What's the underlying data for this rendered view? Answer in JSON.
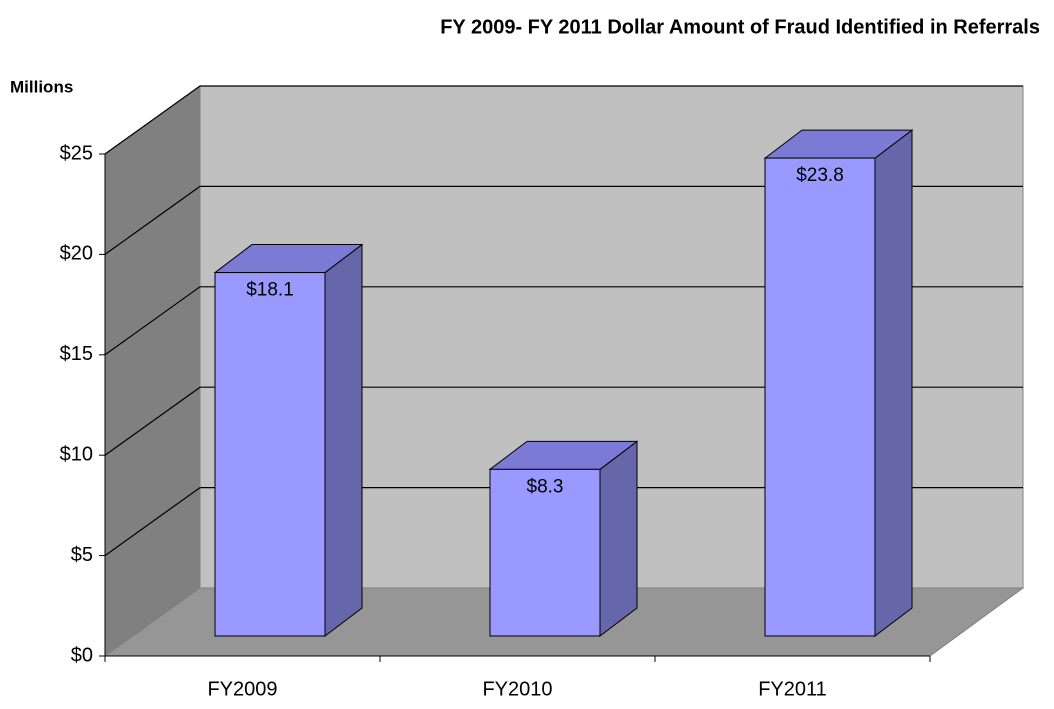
{
  "chart_data": {
    "type": "bar3d",
    "title": "FY 2009- FY 2011 Dollar Amount of Fraud Identified in Referrals",
    "y_axis_label": "Millions",
    "categories": [
      "FY2009",
      "FY2010",
      "FY2011"
    ],
    "values": [
      18.1,
      8.3,
      23.8
    ],
    "value_labels": [
      "$18.1",
      "$8.3",
      "$23.8"
    ],
    "color": "#9999ff",
    "ylim": [
      0,
      25
    ],
    "yticks": [
      {
        "value": 0,
        "label": "$0"
      },
      {
        "value": 5,
        "label": "$5"
      },
      {
        "value": 10,
        "label": "$10"
      },
      {
        "value": 15,
        "label": "$15"
      },
      {
        "value": 20,
        "label": "$20"
      },
      {
        "value": 25,
        "label": "$25"
      }
    ],
    "grid": true
  }
}
